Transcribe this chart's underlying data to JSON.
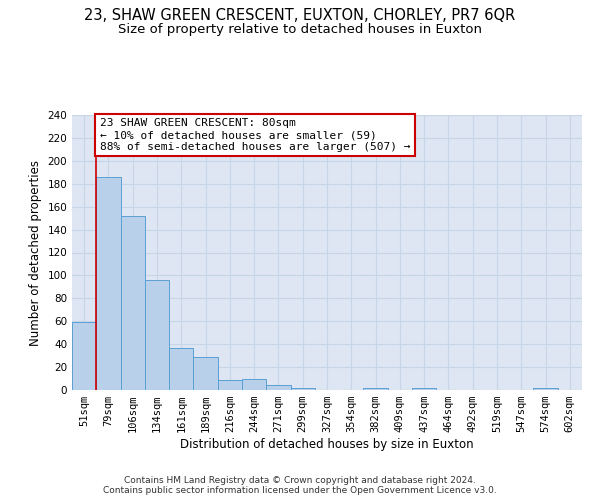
{
  "title": "23, SHAW GREEN CRESCENT, EUXTON, CHORLEY, PR7 6QR",
  "subtitle": "Size of property relative to detached houses in Euxton",
  "xlabel": "Distribution of detached houses by size in Euxton",
  "ylabel": "Number of detached properties",
  "footer_line1": "Contains HM Land Registry data © Crown copyright and database right 2024.",
  "footer_line2": "Contains public sector information licensed under the Open Government Licence v3.0.",
  "bin_labels": [
    "51sqm",
    "79sqm",
    "106sqm",
    "134sqm",
    "161sqm",
    "189sqm",
    "216sqm",
    "244sqm",
    "271sqm",
    "299sqm",
    "327sqm",
    "354sqm",
    "382sqm",
    "409sqm",
    "437sqm",
    "464sqm",
    "492sqm",
    "519sqm",
    "547sqm",
    "574sqm",
    "602sqm"
  ],
  "bar_values": [
    59,
    186,
    152,
    96,
    37,
    29,
    9,
    10,
    4,
    2,
    0,
    0,
    2,
    0,
    2,
    0,
    0,
    0,
    0,
    2,
    0
  ],
  "bar_color": "#b8d0ea",
  "bar_edge_color": "#5a9fd4",
  "bar_edge_width": 0.7,
  "red_line_x": 0.5,
  "ylim": [
    0,
    240
  ],
  "yticks": [
    0,
    20,
    40,
    60,
    80,
    100,
    120,
    140,
    160,
    180,
    200,
    220,
    240
  ],
  "annotation_text": "23 SHAW GREEN CRESCENT: 80sqm\n← 10% of detached houses are smaller (59)\n88% of semi-detached houses are larger (507) →",
  "annotation_box_color": "#ffffff",
  "annotation_box_edge_color": "#cc0000",
  "grid_color": "#c8d4e8",
  "bg_color": "#dde6f2",
  "title_fontsize": 10.5,
  "subtitle_fontsize": 9.5,
  "axis_label_fontsize": 8.5,
  "tick_fontsize": 7.5,
  "annotation_fontsize": 8,
  "footer_fontsize": 6.5
}
